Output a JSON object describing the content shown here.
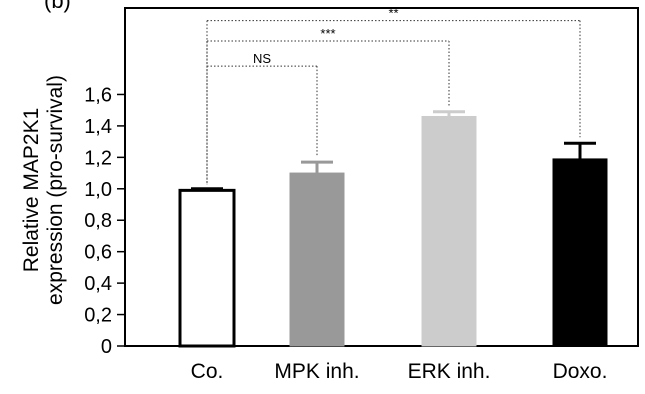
{
  "chart_data": {
    "type": "bar",
    "panel_label": "(b)",
    "ylabel_line1": "Relative MAP2K1",
    "ylabel_line2": "expression (pro-survival)",
    "categories": [
      "Co.",
      "MPK inh.",
      "ERK inh.",
      "Doxo."
    ],
    "values": [
      0.99,
      1.1,
      1.46,
      1.19
    ],
    "errors": [
      0.01,
      0.07,
      0.03,
      0.1
    ],
    "colors": [
      "#ffffff",
      "#999999",
      "#cccccc",
      "#000000"
    ],
    "edge_colors": [
      "#000000",
      "#999999",
      "#cccccc",
      "#000000"
    ],
    "yticks": [
      "0",
      "0,2",
      "0,4",
      "0,6",
      "0,8",
      "1,0",
      "1,2",
      "1,4",
      "1,6"
    ],
    "ytick_values": [
      0,
      0.2,
      0.4,
      0.6,
      0.8,
      1.0,
      1.2,
      1.4,
      1.6
    ],
    "ylim": [
      0,
      2.15
    ],
    "significance": [
      {
        "from": 0,
        "to": 1,
        "label": "NS",
        "level": 1.78
      },
      {
        "from": 0,
        "to": 2,
        "label": "***",
        "level": 1.94
      },
      {
        "from": 0,
        "to": 3,
        "label": "**",
        "level": 2.07
      }
    ]
  }
}
